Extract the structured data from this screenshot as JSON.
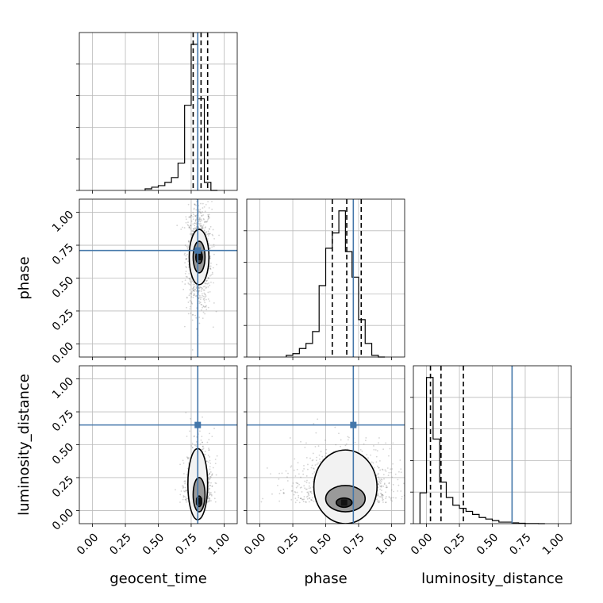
{
  "colors": {
    "truth": "#4477aa",
    "hist": "#000000",
    "grid": "#bbbbbb",
    "scatter": "#555555"
  },
  "chart_data": {
    "type": "corner",
    "parameters": [
      "geocent_time",
      "phase",
      "luminosity_distance"
    ],
    "truths": [
      0.8,
      0.71,
      0.65
    ],
    "axis_range": [
      -0.1,
      1.1
    ],
    "tick_labels": [
      "0.00",
      "0.25",
      "0.50",
      "0.75",
      "1.00"
    ],
    "grid": true,
    "marginals": [
      {
        "parameter": "geocent_time",
        "quantiles": [
          0.765,
          0.825,
          0.875
        ],
        "bin_edges": [
          0.4,
          0.45,
          0.5,
          0.55,
          0.6,
          0.65,
          0.7,
          0.75,
          0.8,
          0.85,
          0.9,
          0.95
        ],
        "counts": [
          1,
          2,
          3,
          5,
          8,
          17,
          53,
          91,
          57,
          5,
          0
        ]
      },
      {
        "parameter": "phase",
        "quantiles": [
          0.55,
          0.66,
          0.77
        ],
        "bin_edges": [
          0.2,
          0.25,
          0.3,
          0.35,
          0.4,
          0.45,
          0.5,
          0.55,
          0.6,
          0.65,
          0.7,
          0.75,
          0.8,
          0.85,
          0.9,
          0.95
        ],
        "counts": [
          1,
          2,
          5,
          8,
          15,
          42,
          64,
          73,
          86,
          62,
          47,
          22,
          8,
          1,
          0
        ]
      },
      {
        "parameter": "luminosity_distance",
        "quantiles": [
          0.03,
          0.11,
          0.28
        ],
        "bin_edges": [
          -0.05,
          0.0,
          0.05,
          0.1,
          0.15,
          0.2,
          0.25,
          0.3,
          0.35,
          0.4,
          0.45,
          0.5,
          0.55,
          0.6,
          0.65,
          0.7,
          0.75,
          0.8,
          0.85,
          0.9
        ],
        "counts": [
          20,
          95,
          55,
          27,
          17,
          12,
          10,
          8,
          6,
          4,
          3,
          2,
          1,
          1,
          0.5,
          0.3,
          0.1,
          0.1,
          0
        ]
      }
    ],
    "joints": [
      {
        "x": "geocent_time",
        "y": "phase",
        "col": 0,
        "row": 1,
        "center": [
          0.81,
          0.66
        ],
        "spread": [
          0.03,
          0.13
        ],
        "contours": [
          {
            "cx": 0.81,
            "cy": 0.66,
            "rx": 0.025,
            "ry": 0.05,
            "fill": "#4a4a4a"
          },
          {
            "cx": 0.81,
            "cy": 0.66,
            "rx": 0.045,
            "ry": 0.12,
            "fill": "#9a9a9a"
          },
          {
            "cx": 0.81,
            "cy": 0.66,
            "rx": 0.075,
            "ry": 0.21,
            "fill": "#f2f2f2"
          }
        ]
      },
      {
        "x": "geocent_time",
        "y": "luminosity_distance",
        "col": 0,
        "row": 2,
        "center": [
          0.81,
          0.1
        ],
        "spread": [
          0.03,
          0.12
        ],
        "contours": [
          {
            "cx": 0.81,
            "cy": 0.07,
            "rx": 0.02,
            "ry": 0.04,
            "fill": "#333333"
          },
          {
            "cx": 0.81,
            "cy": 0.12,
            "rx": 0.045,
            "ry": 0.13,
            "fill": "#9a9a9a"
          },
          {
            "cx": 0.8,
            "cy": 0.2,
            "rx": 0.075,
            "ry": 0.27,
            "fill": "#f2f2f2"
          }
        ]
      },
      {
        "x": "phase",
        "y": "luminosity_distance",
        "col": 1,
        "row": 2,
        "center": [
          0.65,
          0.1
        ],
        "spread": [
          0.13,
          0.12
        ],
        "contours": [
          {
            "cx": 0.64,
            "cy": 0.06,
            "rx": 0.06,
            "ry": 0.035,
            "fill": "#333333"
          },
          {
            "cx": 0.65,
            "cy": 0.09,
            "rx": 0.15,
            "ry": 0.1,
            "fill": "#9a9a9a"
          },
          {
            "cx": 0.65,
            "cy": 0.18,
            "rx": 0.24,
            "ry": 0.28,
            "fill": "#f2f2f2"
          }
        ]
      }
    ]
  }
}
